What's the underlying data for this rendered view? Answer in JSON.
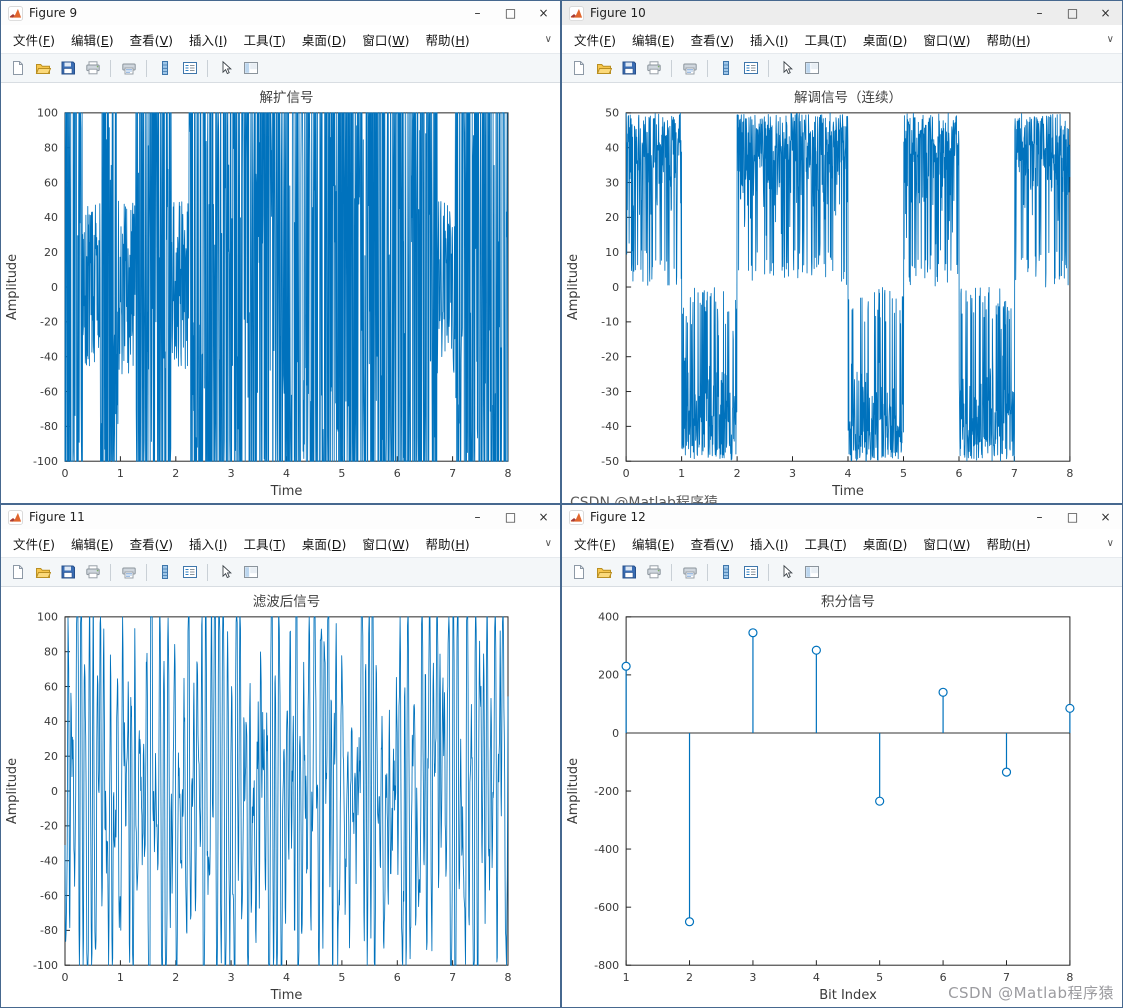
{
  "overlay": {
    "watermark": "CSDN @Matlab程序猿",
    "watermark_partial": "CSDN @Matlab程序猿"
  },
  "window_chrome": {
    "menu_items": [
      "文件(F)",
      "编辑(E)",
      "查看(V)",
      "插入(I)",
      "工具(T)",
      "桌面(D)",
      "窗口(W)",
      "帮助(H)"
    ],
    "glyphs": {
      "minimize": "–",
      "maximize": "□",
      "close": "×",
      "menu_overflow": "∨"
    },
    "toolbar_icons": [
      "new-figure",
      "open-file",
      "save-figure",
      "print-figure",
      "|",
      "print-preview",
      "|",
      "insert-colorbar",
      "insert-legend",
      "|",
      "edit-plot",
      "show-plot-tools"
    ]
  },
  "windows": [
    {
      "title": "Figure 9"
    },
    {
      "title": "Figure 10"
    },
    {
      "title": "Figure 11"
    },
    {
      "title": "Figure 12"
    }
  ],
  "chart_data": [
    {
      "type": "line",
      "title": "解扩信号",
      "xlabel": "Time",
      "ylabel": "Amplitude",
      "xlim": [
        0,
        8
      ],
      "ylim": [
        -100,
        100
      ],
      "xticks": [
        0,
        1,
        2,
        3,
        4,
        5,
        6,
        7,
        8
      ],
      "yticks": [
        -100,
        -80,
        -60,
        -40,
        -20,
        0,
        20,
        40,
        60,
        80,
        100
      ],
      "line_color": "#0072BD",
      "series_kind": "dense-bipolar-chips",
      "signal": {
        "amplitude": 100,
        "description": "Despread chip waveform: dense rectangular oscillation filling the full ±100 range over 0–8 s with occasional lighter vertical gaps"
      }
    },
    {
      "type": "line",
      "title": "解调信号（连续）",
      "xlabel": "Time",
      "ylabel": "Amplitude",
      "xlim": [
        0,
        8
      ],
      "ylim": [
        -50,
        50
      ],
      "xticks": [
        0,
        1,
        2,
        3,
        4,
        5,
        6,
        7,
        8
      ],
      "yticks": [
        -50,
        -40,
        -30,
        -20,
        -10,
        0,
        10,
        20,
        30,
        40,
        50
      ],
      "line_color": "#0072BD",
      "series_kind": "bit-halfband",
      "signal": {
        "amplitude": 50,
        "bits": [
          1,
          -1,
          1,
          1,
          -1,
          1,
          -1,
          1
        ],
        "bit_duration": 1,
        "description": "Demodulated continuous signal: dense bursts filling 0..+50 during positive bits (1,3,4,6,8) and -50..0 during negative bits (2,5,7)"
      }
    },
    {
      "type": "line",
      "title": "滤波后信号",
      "xlabel": "Time",
      "ylabel": "Amplitude",
      "xlim": [
        0,
        8
      ],
      "ylim": [
        -100,
        100
      ],
      "xticks": [
        0,
        1,
        2,
        3,
        4,
        5,
        6,
        7,
        8
      ],
      "yticks": [
        -100,
        -80,
        -60,
        -40,
        -20,
        0,
        20,
        40,
        60,
        80,
        100
      ],
      "line_color": "#0072BD",
      "series_kind": "filtered-noise",
      "signal": {
        "amplitude": 100,
        "description": "Band-pass filtered signal: dense oscillation with varying envelope, many peaks clipping at ±100"
      }
    },
    {
      "type": "stem",
      "title": "积分信号",
      "xlabel": "Bit Index",
      "ylabel": "Amplitude",
      "xlim": [
        1,
        8
      ],
      "ylim": [
        -800,
        400
      ],
      "xticks": [
        1,
        2,
        3,
        4,
        5,
        6,
        7,
        8
      ],
      "yticks": [
        -800,
        -600,
        -400,
        -200,
        0,
        200,
        400
      ],
      "line_color": "#0072BD",
      "x": [
        1,
        2,
        3,
        4,
        5,
        6,
        7,
        8
      ],
      "values": [
        230,
        -650,
        345,
        285,
        -235,
        140,
        -135,
        85
      ]
    }
  ]
}
